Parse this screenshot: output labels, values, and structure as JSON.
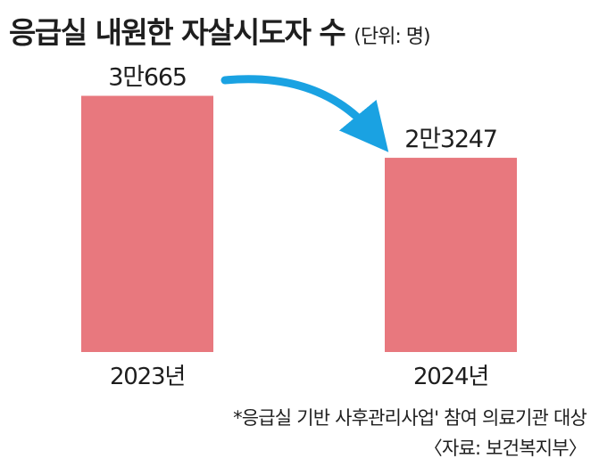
{
  "title": "응급실 내원한 자살시도자 수",
  "unit": "(단위: 명)",
  "colors": {
    "bar": "#e8787e",
    "arrow": "#1aa2e2",
    "text": "#1e1e1e"
  },
  "chart_data": {
    "type": "bar",
    "title": "응급실 내원한 자살시도자 수",
    "unit": "(단위: 명)",
    "categories": [
      "2023년",
      "2024년"
    ],
    "values": [
      30665,
      23247
    ],
    "value_labels": [
      "3만665",
      "2만3247"
    ],
    "ylim": [
      0,
      32000
    ],
    "grid": false,
    "legend": "none",
    "annotation": "arrow from 2023 bar to 2024 bar indicating decrease"
  },
  "notes": {
    "footnote": "*응급실 기반 사후관리사업' 참여 의료기관 대상",
    "source": "〈자료: 보건복지부〉"
  }
}
